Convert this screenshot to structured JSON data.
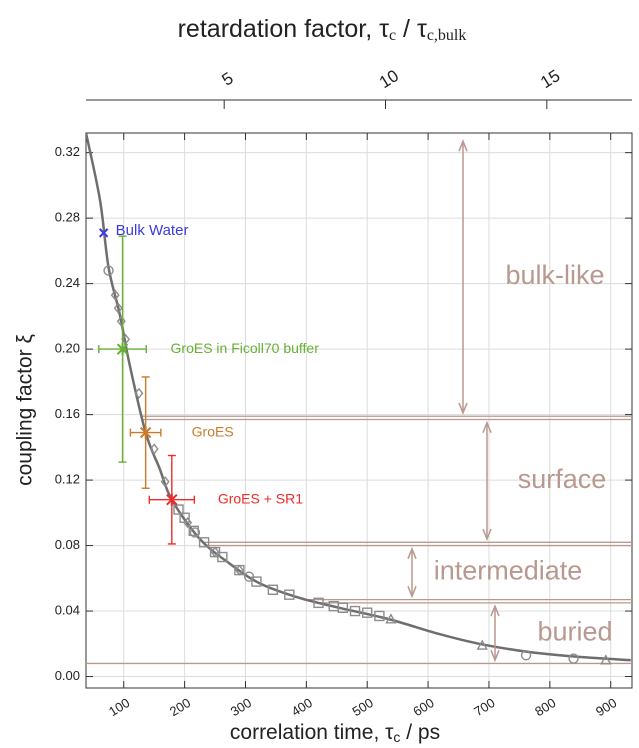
{
  "chart_data": {
    "type": "scatter",
    "x2label": [
      "retardation factor, τ",
      "c",
      " / τ",
      "c,bulk"
    ],
    "xlabel": [
      "correlation time, τ",
      "c",
      " / ps"
    ],
    "ylabel": "coupling factor ξ",
    "xlim": [
      38,
      935
    ],
    "xticks": [
      100,
      200,
      300,
      400,
      500,
      600,
      700,
      800,
      900
    ],
    "x2lim": [
      0.717,
      17.64
    ],
    "x2ticks": [
      5,
      10,
      15
    ],
    "ylim": [
      -0.007,
      0.332
    ],
    "yticks": [
      {
        "value": 0,
        "label": "0.00"
      },
      {
        "value": 0.04,
        "label": "0.04"
      },
      {
        "value": 0.08,
        "label": "0.08"
      },
      {
        "value": 0.12,
        "label": "0.12"
      },
      {
        "value": 0.16,
        "label": "0.16"
      },
      {
        "value": 0.2,
        "label": "0.20"
      },
      {
        "value": 0.24,
        "label": "0.24"
      },
      {
        "value": 0.28,
        "label": "0.28"
      },
      {
        "value": 0.32,
        "label": "0.32"
      }
    ],
    "grid": true,
    "fit": {
      "color": "#6e6e6e",
      "x": [
        38,
        61,
        75,
        93,
        110,
        136,
        159,
        179,
        225,
        274,
        323,
        389,
        454,
        536,
        618,
        684,
        766,
        848,
        933
      ],
      "y": [
        0.332,
        0.291,
        0.25,
        0.222,
        0.19,
        0.149,
        0.127,
        0.108,
        0.084,
        0.069,
        0.057,
        0.048,
        0.042,
        0.035,
        0.026,
        0.02,
        0.015,
        0.012,
        0.01
      ]
    },
    "series": [
      {
        "marker": "circle",
        "color": "#8c8c8c",
        "x": [
          75,
          217,
          306,
          761,
          839
        ],
        "y": [
          0.248,
          0.088,
          0.061,
          0.013,
          0.011
        ]
      },
      {
        "marker": "diamond",
        "color": "#8c8c8c",
        "x": [
          86,
          91,
          96,
          103,
          125,
          150,
          168,
          205,
          250,
          290
        ],
        "y": [
          0.233,
          0.225,
          0.217,
          0.206,
          0.173,
          0.139,
          0.119,
          0.094,
          0.076,
          0.065
        ]
      },
      {
        "marker": "square",
        "color": "#8c8c8c",
        "x": [
          190,
          200,
          215,
          232,
          250,
          262,
          290,
          318,
          345,
          372,
          420,
          445,
          460,
          480,
          500,
          520
        ],
        "y": [
          0.102,
          0.097,
          0.089,
          0.082,
          0.076,
          0.073,
          0.065,
          0.058,
          0.053,
          0.05,
          0.045,
          0.043,
          0.042,
          0.04,
          0.039,
          0.037
        ]
      },
      {
        "marker": "triangle",
        "color": "#8c8c8c",
        "x": [
          539,
          689,
          892
        ],
        "y": [
          0.035,
          0.019,
          0.01
        ]
      }
    ],
    "measurements": [
      {
        "name": "Bulk Water",
        "color": "#3a3ae0",
        "marker": "x",
        "x": 67,
        "y": 0.271
      },
      {
        "name": "GroES in Ficoll70 buffer",
        "color": "#66b032",
        "marker": "star",
        "x": 98,
        "y": 0.2,
        "xerr": 39,
        "yerr": 0.069
      },
      {
        "name": "GroES",
        "color": "#cc7a2a",
        "marker": "star",
        "x": 136,
        "y": 0.149,
        "xerr": 25,
        "yerr": 0.034
      },
      {
        "name": "GroES + SR1",
        "color": "#ee2a2a",
        "marker": "star",
        "x": 179,
        "y": 0.108,
        "xerr": 37,
        "yerr": 0.027
      }
    ],
    "levels": [
      0.159,
      0.157,
      0.082,
      0.08,
      0.047,
      0.045,
      0.008
    ],
    "level_color": "#b8998f",
    "regions": [
      {
        "name": "bulk-like",
        "range": [
          0.327,
          0.161
        ]
      },
      {
        "name": "surface",
        "range": [
          0.155,
          0.084
        ]
      },
      {
        "name": "intermediate",
        "range": [
          0.078,
          0.049
        ]
      },
      {
        "name": "buried",
        "range": [
          0.043,
          0.01
        ]
      }
    ]
  }
}
